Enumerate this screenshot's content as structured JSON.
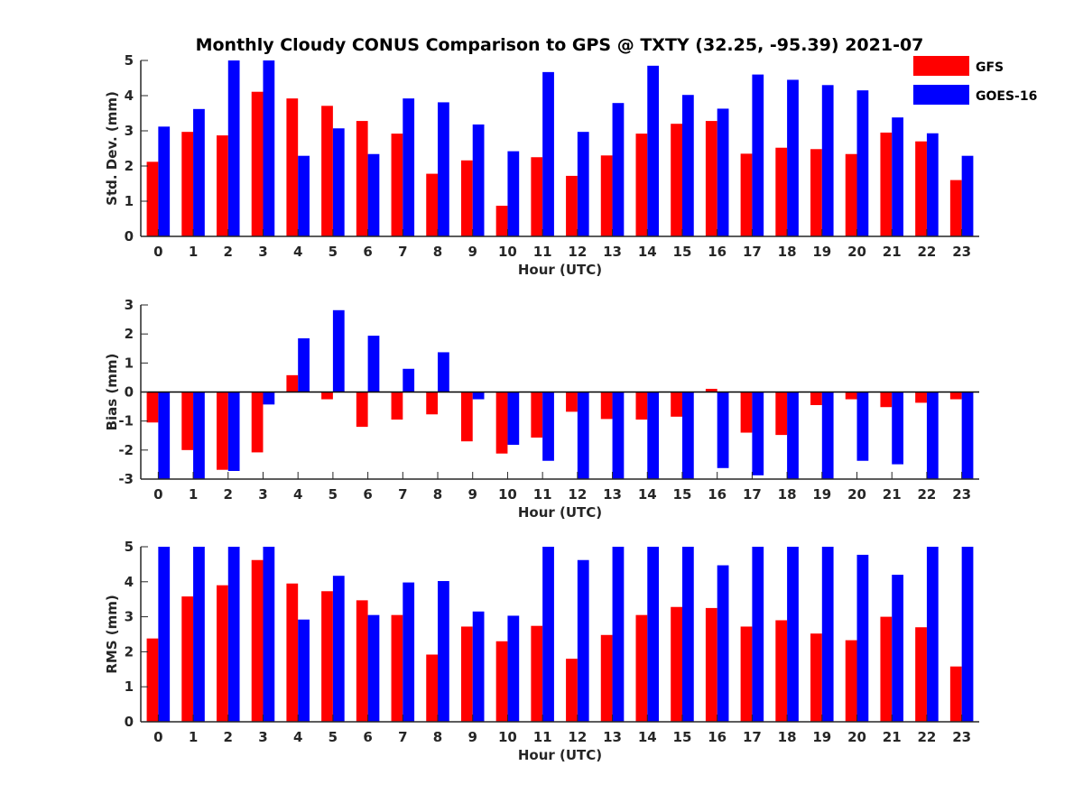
{
  "title": "Monthly Cloudy CONUS Comparison to GPS @ TXTY (32.25, -95.39) 2021-07",
  "legend": [
    {
      "name": "GFS",
      "color": "#ff0000"
    },
    {
      "name": "GOES-16",
      "color": "#0000ff"
    }
  ],
  "chart_data": [
    {
      "type": "bar",
      "categories": [
        "0",
        "1",
        "2",
        "3",
        "4",
        "5",
        "6",
        "7",
        "8",
        "9",
        "10",
        "11",
        "12",
        "13",
        "14",
        "15",
        "16",
        "17",
        "18",
        "19",
        "20",
        "21",
        "22",
        "23"
      ],
      "xlabel": "Hour (UTC)",
      "ylabel": "Std. Dev. (mm)",
      "ylim": [
        0,
        5
      ],
      "yticks": [
        0,
        1,
        2,
        3,
        4,
        5
      ],
      "series": [
        {
          "name": "GFS",
          "color": "#ff0000",
          "values": [
            2.12,
            2.97,
            2.87,
            4.11,
            3.92,
            3.71,
            3.28,
            2.92,
            1.78,
            2.16,
            0.87,
            2.25,
            1.72,
            2.3,
            2.92,
            3.2,
            3.28,
            2.35,
            2.52,
            2.48,
            2.34,
            2.95,
            2.7,
            1.6
          ]
        },
        {
          "name": "GOES-16",
          "color": "#0000ff",
          "values": [
            3.12,
            3.62,
            5.0,
            5.0,
            2.29,
            3.07,
            2.34,
            3.92,
            3.81,
            3.18,
            2.42,
            4.67,
            2.97,
            3.79,
            4.85,
            4.02,
            3.63,
            4.6,
            4.45,
            4.3,
            4.15,
            3.38,
            2.93,
            2.29
          ]
        }
      ]
    },
    {
      "type": "bar",
      "categories": [
        "0",
        "1",
        "2",
        "3",
        "4",
        "5",
        "6",
        "7",
        "8",
        "9",
        "10",
        "11",
        "12",
        "13",
        "14",
        "15",
        "16",
        "17",
        "18",
        "19",
        "20",
        "21",
        "22",
        "23"
      ],
      "xlabel": "Hour (UTC)",
      "ylabel": "Bias (mm)",
      "ylim": [
        -3,
        3
      ],
      "yticks": [
        -3,
        -2,
        -1,
        0,
        1,
        2,
        3
      ],
      "series": [
        {
          "name": "GFS",
          "color": "#ff0000",
          "values": [
            -1.05,
            -2.0,
            -2.68,
            -2.08,
            0.58,
            -0.25,
            -1.2,
            -0.95,
            -0.77,
            -1.7,
            -2.12,
            -1.57,
            -0.68,
            -0.93,
            -0.95,
            -0.85,
            0.11,
            -1.4,
            -1.48,
            -0.45,
            -0.25,
            -0.52,
            -0.37,
            -0.25
          ]
        },
        {
          "name": "GOES-16",
          "color": "#0000ff",
          "values": [
            -3.0,
            -3.0,
            -2.72,
            -0.43,
            1.85,
            2.82,
            1.94,
            0.8,
            1.37,
            -0.25,
            -1.82,
            -2.37,
            -3.0,
            -3.0,
            -3.0,
            -3.0,
            -2.62,
            -2.87,
            -3.0,
            -3.0,
            -2.37,
            -2.49,
            -3.0,
            -3.0
          ]
        }
      ]
    },
    {
      "type": "bar",
      "categories": [
        "0",
        "1",
        "2",
        "3",
        "4",
        "5",
        "6",
        "7",
        "8",
        "9",
        "10",
        "11",
        "12",
        "13",
        "14",
        "15",
        "16",
        "17",
        "18",
        "19",
        "20",
        "21",
        "22",
        "23"
      ],
      "xlabel": "Hour (UTC)",
      "ylabel": "RMS (mm)",
      "ylim": [
        0,
        5
      ],
      "yticks": [
        0,
        1,
        2,
        3,
        4,
        5
      ],
      "series": [
        {
          "name": "GFS",
          "color": "#ff0000",
          "values": [
            2.38,
            3.58,
            3.9,
            4.62,
            3.95,
            3.73,
            3.47,
            3.05,
            1.92,
            2.72,
            2.3,
            2.74,
            1.8,
            2.48,
            3.05,
            3.28,
            3.25,
            2.72,
            2.9,
            2.52,
            2.33,
            3.0,
            2.7,
            1.58
          ]
        },
        {
          "name": "GOES-16",
          "color": "#0000ff",
          "values": [
            5.0,
            5.0,
            5.0,
            5.0,
            2.92,
            4.17,
            3.05,
            3.98,
            4.02,
            3.15,
            3.03,
            5.0,
            4.62,
            5.0,
            5.0,
            5.0,
            4.47,
            5.0,
            5.0,
            5.0,
            4.77,
            4.2,
            5.0,
            5.0
          ]
        }
      ]
    }
  ]
}
